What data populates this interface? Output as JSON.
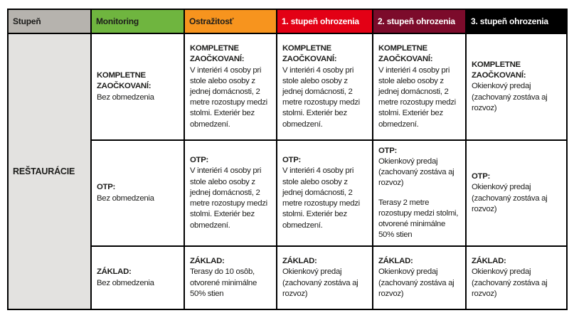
{
  "table": {
    "headers": [
      {
        "label": "Stupeň",
        "bg": "#b6b3ae",
        "fg": "#1d1d1b"
      },
      {
        "label": "Monitoring",
        "bg": "#6fb53f",
        "fg": "#1d1d1b"
      },
      {
        "label": "Ostražitosť",
        "bg": "#f7941e",
        "fg": "#1d1d1b"
      },
      {
        "label": "1. stupeň ohrozenia",
        "bg": "#e30015",
        "fg": "#ffffff"
      },
      {
        "label": "2. stupeň ohrozenia",
        "bg": "#7c0b2b",
        "fg": "#ffffff"
      },
      {
        "label": "3. stupeň ohrozenia",
        "bg": "#000000",
        "fg": "#ffffff"
      }
    ],
    "row_header": {
      "label": "REŠTAURÁCIE",
      "bg": "#e3e2e0"
    },
    "border_color": "#000000",
    "rows": [
      {
        "name": "kompletne-zaockovani",
        "cells": [
          {
            "title": "KOMPLETNE ZAOČKOVANÍ:",
            "text": "Bez obmedzenia"
          },
          {
            "title": "KOMPLETNE ZAOČKOVANÍ:",
            "text": "V interiéri 4 osoby pri stole alebo osoby z jednej domácnosti, 2 metre rozostupy medzi stolmi. Exteriér bez obmedzení."
          },
          {
            "title": "KOMPLETNE ZAOČKOVANÍ:",
            "text": "V interiéri 4 osoby pri stole alebo osoby z jednej domácnosti, 2 metre rozostupy medzi stolmi. Exteriér bez obmedzení."
          },
          {
            "title": "KOMPLETNE ZAOČKOVANÍ:",
            "text": "V interiéri 4 osoby pri stole alebo osoby z jednej domácnosti, 2 metre rozostupy medzi stolmi. Exteriér bez obmedzení."
          },
          {
            "title": "KOMPLETNE ZAOČKOVANÍ:",
            "text": "Okienkový predaj (zachovaný zostáva aj rozvoz)"
          }
        ]
      },
      {
        "name": "otp",
        "cells": [
          {
            "title": "OTP:",
            "text": "Bez obmedzenia"
          },
          {
            "title": "OTP:",
            "text": "V interiéri 4 osoby pri stole alebo osoby z jednej domácnosti, 2 metre rozostupy medzi stolmi. Exteriér bez obmedzení."
          },
          {
            "title": "OTP:",
            "text": "V interiéri 4 osoby pri stole alebo osoby z jednej domácnosti, 2 metre rozostupy medzi stolmi. Exteriér bez obmedzení."
          },
          {
            "title": "OTP:",
            "text": "Okienkový predaj (zachovaný zostáva aj rozvoz)",
            "text2": "Terasy 2 metre rozostupy medzi stolmi, otvorené minimálne 50% stien"
          },
          {
            "title": "OTP:",
            "text": "Okienkový predaj (zachovaný zostáva aj rozvoz)"
          }
        ]
      },
      {
        "name": "zaklad",
        "cells": [
          {
            "title": "ZÁKLAD:",
            "text": "Bez obmedzenia"
          },
          {
            "title": "ZÁKLAD:",
            "text": "Terasy do 10 osôb, otvorené minimálne 50% stien"
          },
          {
            "title": "ZÁKLAD:",
            "text": "Okienkový predaj (zachovaný zostáva aj rozvoz)"
          },
          {
            "title": "ZÁKLAD:",
            "text": "Okienkový predaj (zachovaný zostáva aj rozvoz)"
          },
          {
            "title": "ZÁKLAD:",
            "text": "Okienkový predaj (zachovaný zostáva aj rozvoz)"
          }
        ]
      }
    ]
  }
}
